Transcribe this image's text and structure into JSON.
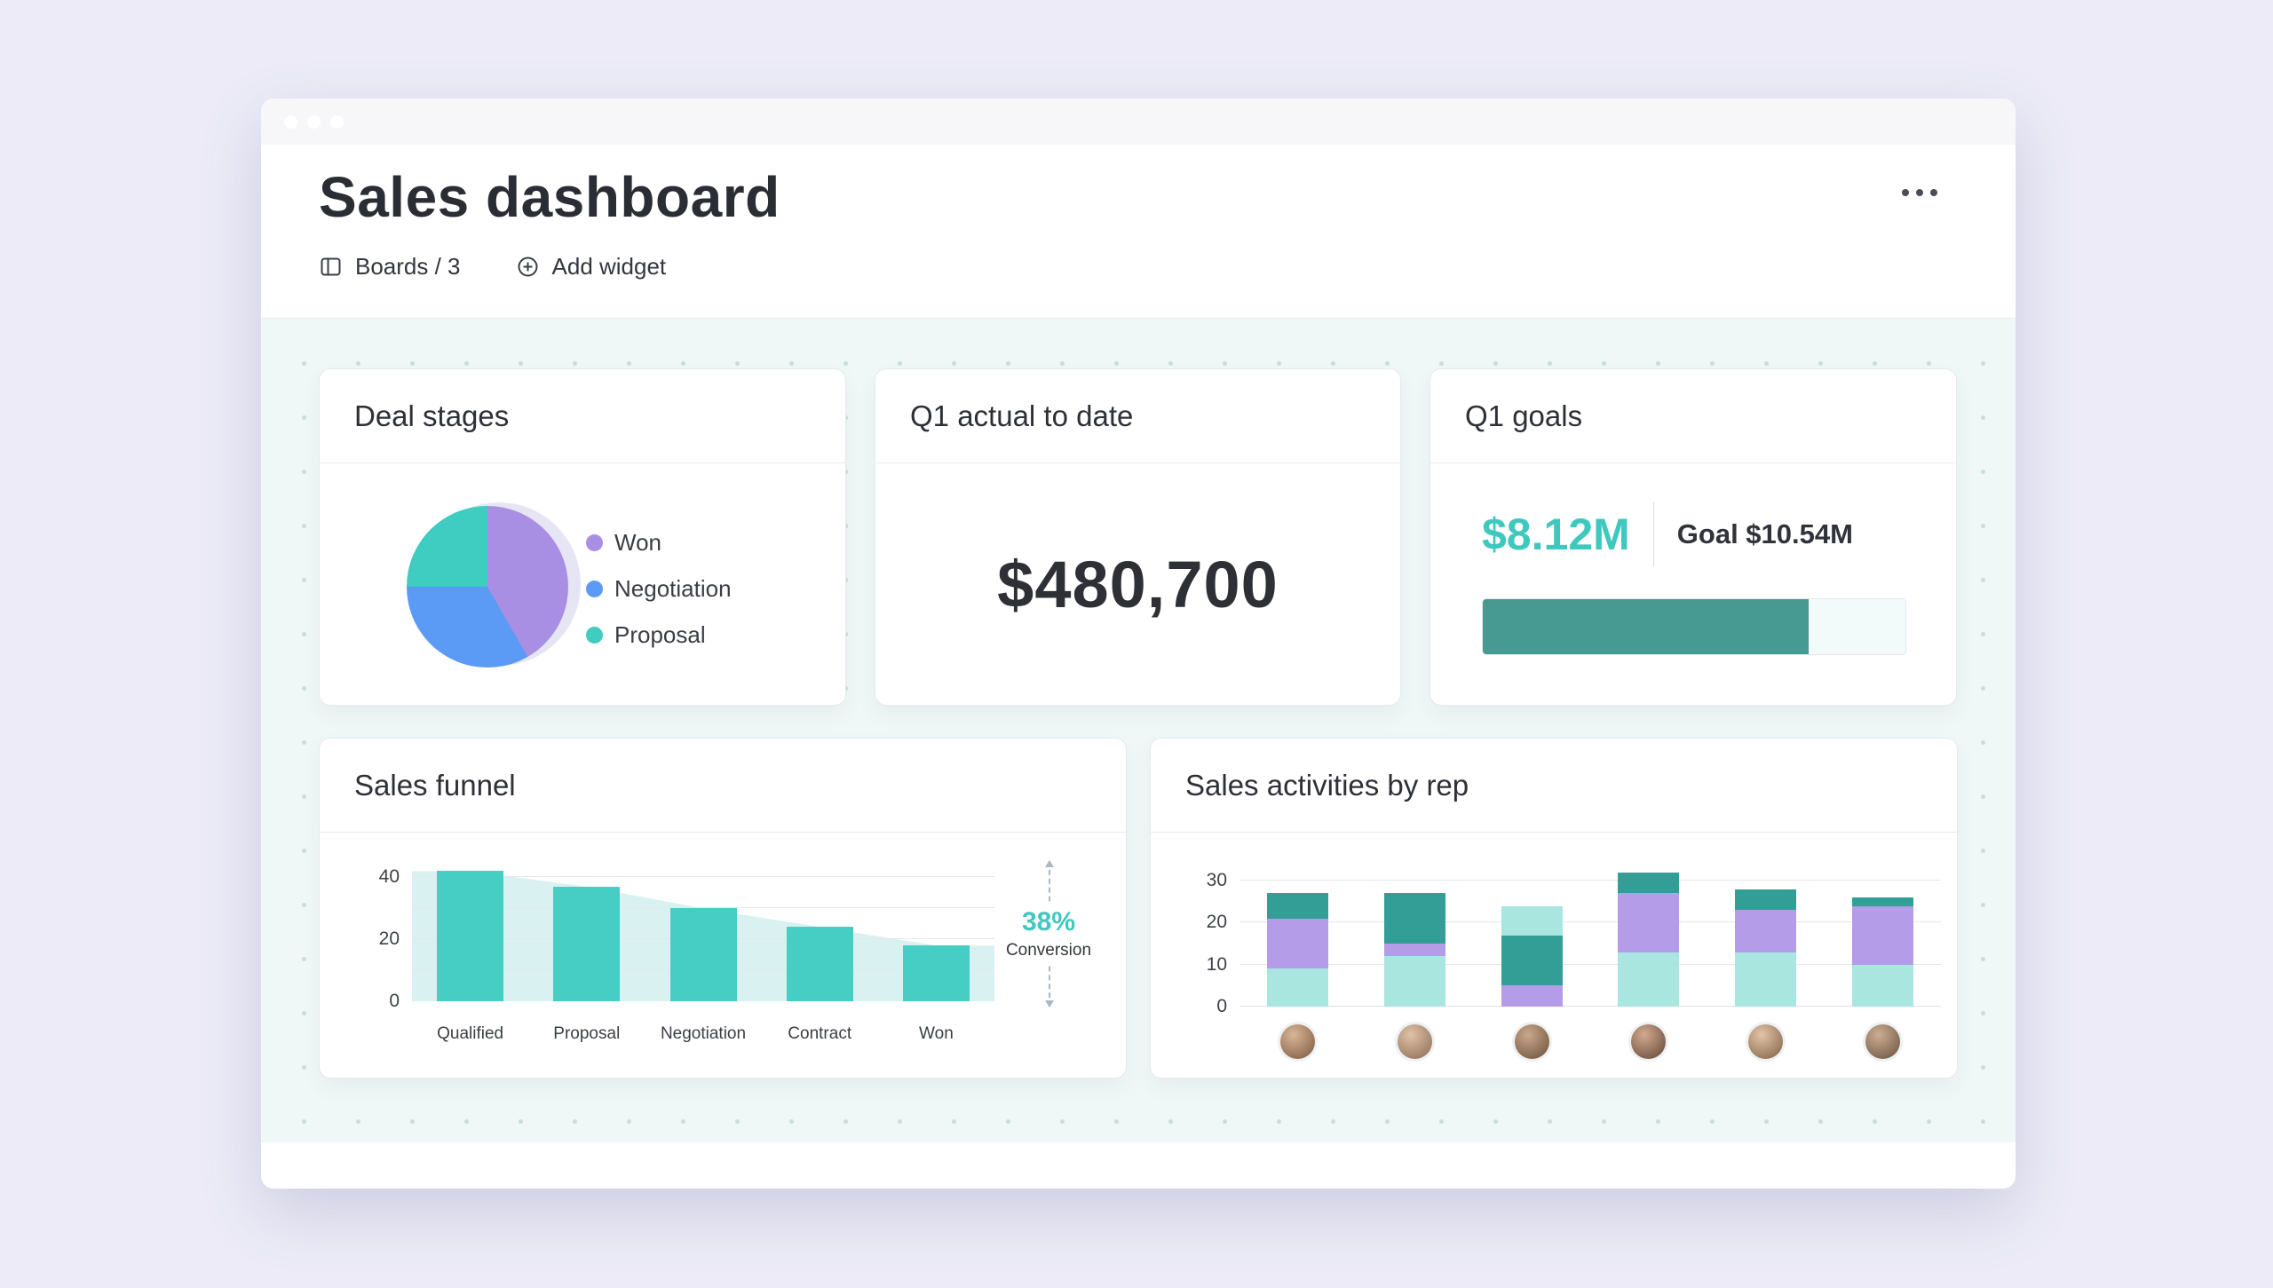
{
  "window": {
    "header": {
      "title": "Sales dashboard"
    },
    "toolbar": {
      "boards_label": "Boards / 3",
      "add_widget_label": "Add widget"
    }
  },
  "widgets": {
    "deal_stages": {
      "title": "Deal stages"
    },
    "q1_actual": {
      "title": "Q1 actual to date",
      "value": "$480,700"
    },
    "q1_goals": {
      "title": "Q1 goals",
      "value": "$8.12M",
      "goal_label": "Goal $10.54M",
      "progress_pct": 77
    },
    "sales_funnel": {
      "title": "Sales funnel",
      "conversion_value": "38%",
      "conversion_label": "Conversion"
    },
    "sales_activities": {
      "title": "Sales activities by rep"
    }
  },
  "chart_data": [
    {
      "type": "pie",
      "widget": "deal_stages",
      "title": "Deal stages",
      "labels": [
        "Won",
        "Negotiation",
        "Proposal"
      ],
      "values": [
        41.7,
        33.3,
        25.0
      ],
      "colors": [
        "#A98FE3",
        "#5B9BF5",
        "#3FCCC1"
      ],
      "legend_position": "right"
    },
    {
      "type": "bar",
      "widget": "sales_funnel",
      "title": "Sales funnel",
      "categories": [
        "Qualified",
        "Proposal",
        "Negotiation",
        "Contract",
        "Won"
      ],
      "values": [
        42,
        37,
        30,
        24,
        18
      ],
      "ylim": [
        0,
        47
      ],
      "yticks": [
        0,
        20,
        40
      ],
      "gridlines": [
        10,
        20,
        30,
        40
      ],
      "bar_color": "#47CEC4",
      "area_color": "#D9F1F0",
      "annotation": "38% Conversion"
    },
    {
      "type": "bar",
      "subtype": "stacked",
      "widget": "sales_activities",
      "title": "Sales activities by rep",
      "categories": [
        "rep-1",
        "rep-2",
        "rep-3",
        "rep-4",
        "rep-5",
        "rep-6"
      ],
      "ylim": [
        0,
        33
      ],
      "yticks": [
        0,
        10,
        20,
        30
      ],
      "gridlines": [
        10,
        20,
        30
      ],
      "palette": {
        "mint": "#A9E6E0",
        "purple": "#B49CE8",
        "teal": "#339E96"
      },
      "bars": [
        [
          [
            "mint",
            9
          ],
          [
            "purple",
            12
          ],
          [
            "teal",
            6
          ]
        ],
        [
          [
            "mint",
            12
          ],
          [
            "purple",
            3
          ],
          [
            "teal",
            12
          ]
        ],
        [
          [
            "purple",
            5
          ],
          [
            "teal",
            12
          ],
          [
            "mint",
            7
          ]
        ],
        [
          [
            "mint",
            13
          ],
          [
            "purple",
            14
          ],
          [
            "teal",
            5
          ]
        ],
        [
          [
            "mint",
            13
          ],
          [
            "purple",
            10
          ],
          [
            "teal",
            5
          ]
        ],
        [
          [
            "mint",
            10
          ],
          [
            "purple",
            14
          ],
          [
            "teal",
            2
          ]
        ]
      ]
    }
  ]
}
